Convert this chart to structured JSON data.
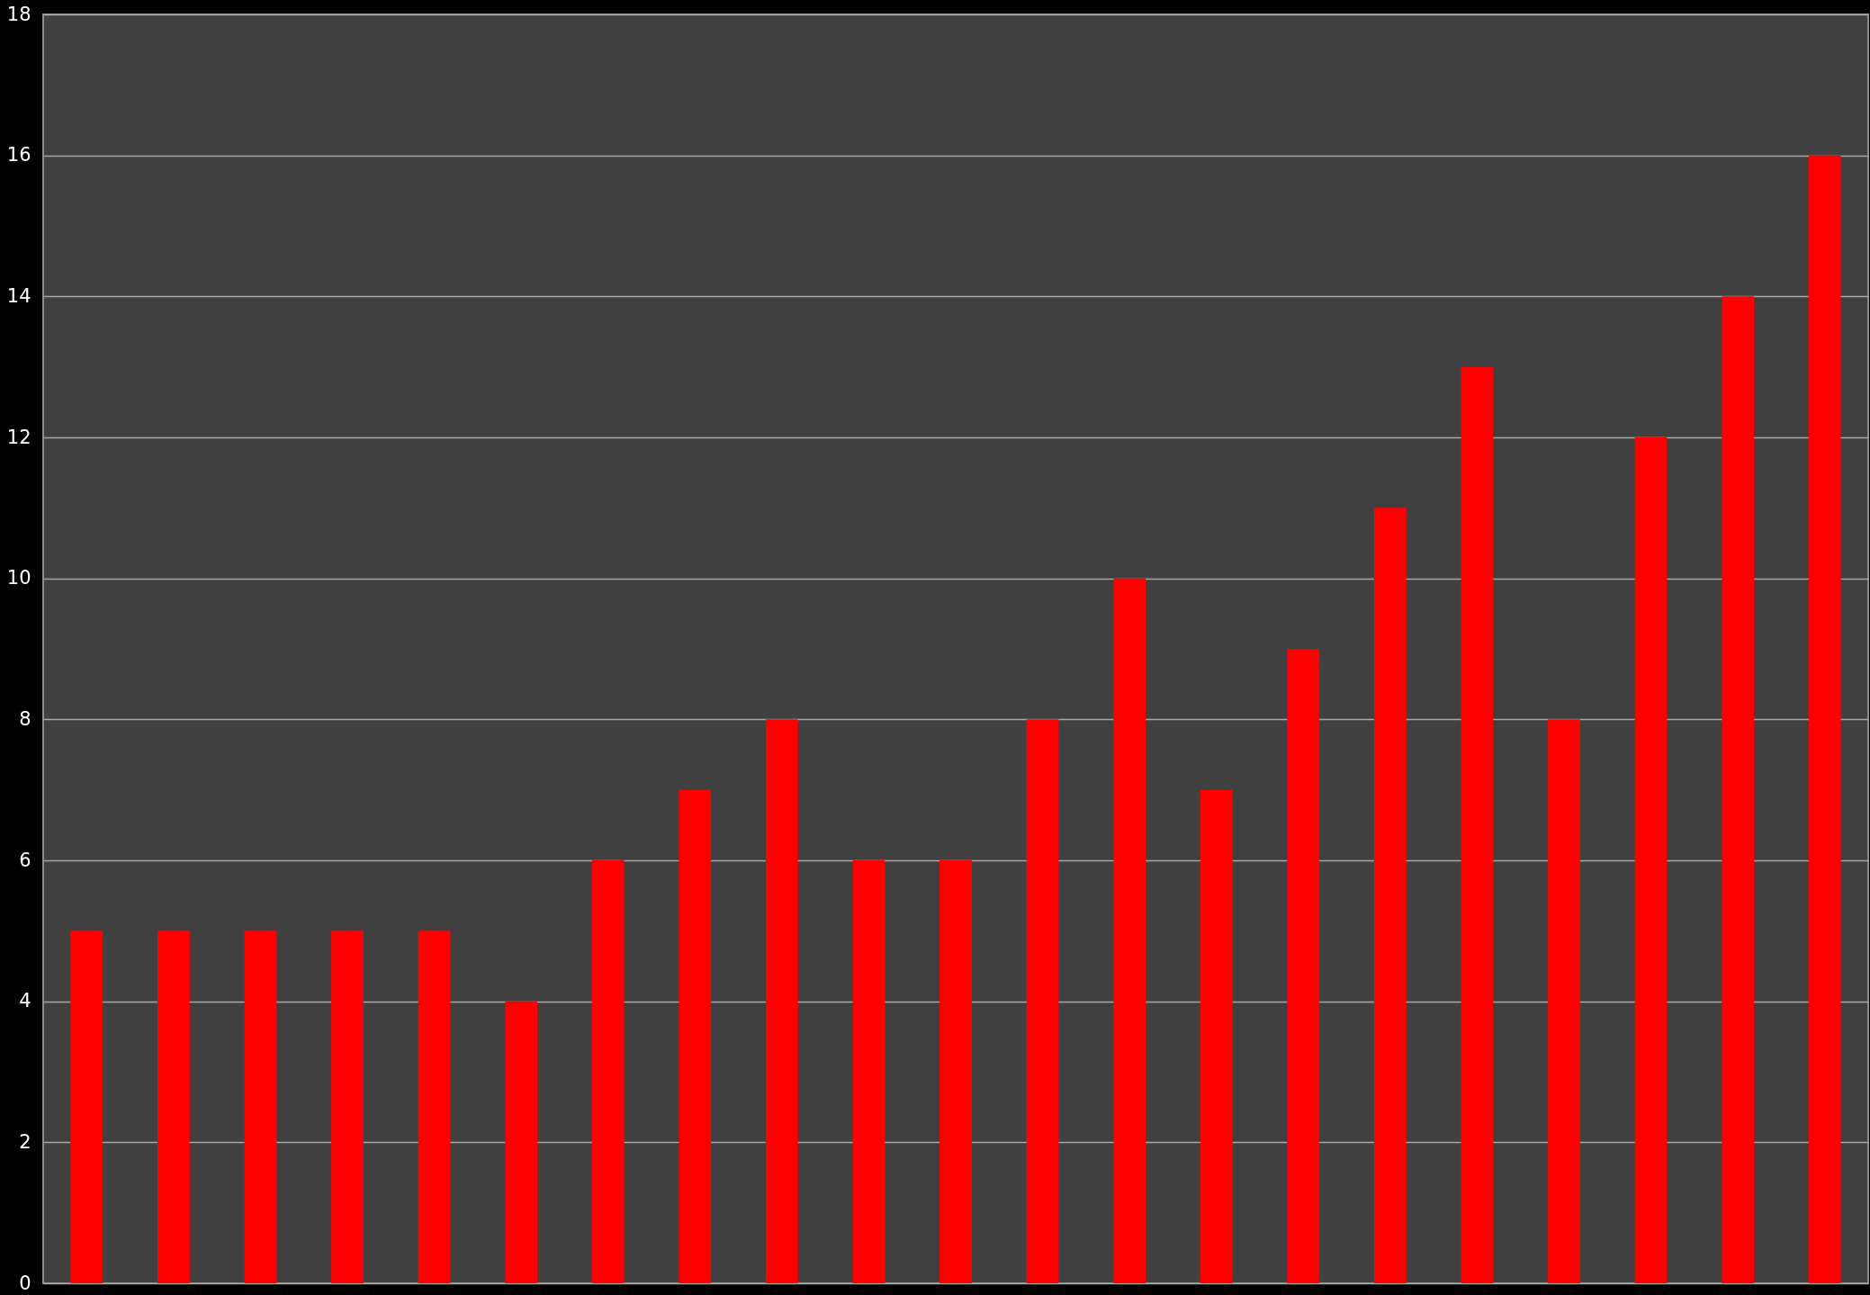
{
  "chart_data": {
    "type": "bar",
    "categories": [
      null,
      null,
      null,
      null,
      null,
      null,
      null,
      null,
      null,
      null,
      null,
      null,
      null,
      null,
      null,
      null,
      null,
      null,
      null,
      null,
      null
    ],
    "values": [
      5,
      5,
      5,
      5,
      5,
      4,
      6,
      7,
      8,
      6,
      6,
      8,
      10,
      7,
      9,
      11,
      13,
      8,
      12,
      14,
      16
    ],
    "color": "#ff0000",
    "ylim": [
      0,
      18
    ],
    "yticks": [
      0,
      2,
      4,
      6,
      8,
      10,
      12,
      14,
      16,
      18
    ],
    "grid": "y",
    "tick_labels": "y"
  }
}
